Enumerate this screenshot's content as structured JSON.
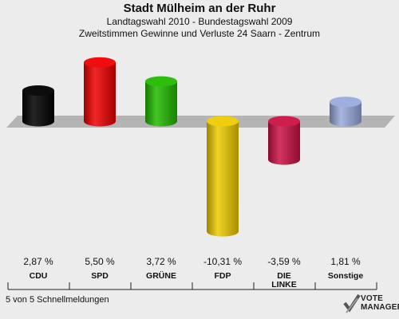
{
  "header": {
    "title": "Stadt Mülheim an der Ruhr",
    "subtitle1": "Landtagswahl 2010 - Bundestagswahl 2009",
    "subtitle2": "Zweitstimmen Gewinne und Verluste 24 Saarn - Zentrum"
  },
  "chart_data": {
    "type": "bar",
    "categories": [
      "CDU",
      "SPD",
      "GRÜNE",
      "FDP",
      "DIE\nLINKE",
      "Sonstige"
    ],
    "values": [
      2.87,
      5.5,
      3.72,
      -10.31,
      -3.59,
      1.81
    ],
    "value_labels": [
      "2,87 %",
      "5,50 %",
      "3,72 %",
      "-10,31 %",
      "-3,59 %",
      "1,81 %"
    ],
    "colors": [
      "#000000",
      "#ee0000",
      "#22bb00",
      "#eecc00",
      "#cc1144",
      "#99aadd"
    ]
  },
  "footer": {
    "status": "5 von 5 Schnellmeldungen"
  },
  "logo": {
    "line1": "VOTE",
    "line2": "MANAGER"
  }
}
